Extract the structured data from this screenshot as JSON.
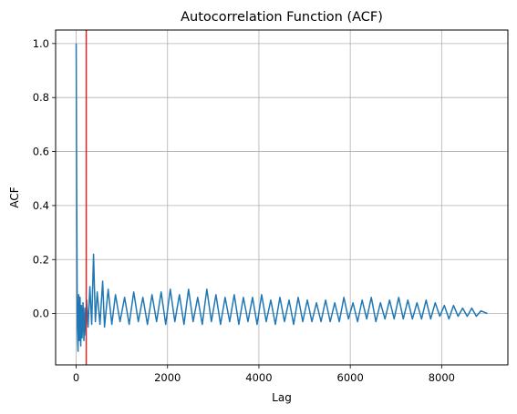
{
  "chart_data": {
    "type": "line",
    "title": "Autocorrelation Function (ACF)",
    "xlabel": "Lag",
    "ylabel": "ACF",
    "xlim": [
      -450,
      9450
    ],
    "ylim": [
      -0.19,
      1.05
    ],
    "xticks": [
      0,
      2000,
      4000,
      6000,
      8000
    ],
    "xtick_labels": [
      "0",
      "2000",
      "4000",
      "6000",
      "8000"
    ],
    "yticks": [
      0.0,
      0.2,
      0.4,
      0.6,
      0.8,
      1.0
    ],
    "ytick_labels": [
      "0.0",
      "0.2",
      "0.4",
      "0.6",
      "0.8",
      "1.0"
    ],
    "grid": true,
    "line_color": "#1f77b4",
    "marker_color": "#d62728",
    "vertical_marker_x": 220,
    "series": [
      {
        "x": [
          0,
          10,
          25,
          40,
          55,
          70,
          85,
          100,
          115,
          130,
          150,
          170,
          190,
          210,
          230,
          260,
          300,
          340,
          380,
          420,
          460,
          520,
          580,
          620,
          700,
          780,
          860,
          960,
          1060,
          1160,
          1260,
          1360,
          1460,
          1560,
          1660,
          1760,
          1860,
          1960,
          2060,
          2160,
          2260,
          2360,
          2460,
          2560,
          2660,
          2760,
          2860,
          2960,
          3060,
          3160,
          3260,
          3360,
          3460,
          3560,
          3660,
          3760,
          3860,
          3960,
          4060,
          4160,
          4260,
          4360,
          4460,
          4560,
          4660,
          4760,
          4860,
          4960,
          5060,
          5160,
          5260,
          5360,
          5460,
          5560,
          5660,
          5760,
          5860,
          5960,
          6060,
          6160,
          6260,
          6360,
          6460,
          6560,
          6660,
          6760,
          6860,
          6960,
          7060,
          7160,
          7260,
          7360,
          7460,
          7560,
          7660,
          7760,
          7860,
          7960,
          8060,
          8160,
          8260,
          8360,
          8460,
          8560,
          8660,
          8760,
          8860,
          9000
        ],
        "y": [
          1.0,
          0.5,
          -0.05,
          -0.14,
          0.07,
          -0.1,
          0.06,
          -0.12,
          0.03,
          -0.09,
          0.04,
          -0.1,
          0.02,
          -0.08,
          0.05,
          -0.05,
          0.1,
          -0.04,
          0.22,
          -0.03,
          0.08,
          -0.04,
          0.12,
          -0.05,
          0.09,
          -0.04,
          0.07,
          -0.03,
          0.06,
          -0.04,
          0.08,
          -0.03,
          0.06,
          -0.04,
          0.07,
          -0.03,
          0.08,
          -0.04,
          0.09,
          -0.03,
          0.07,
          -0.04,
          0.09,
          -0.03,
          0.06,
          -0.04,
          0.09,
          -0.03,
          0.07,
          -0.04,
          0.06,
          -0.03,
          0.07,
          -0.04,
          0.06,
          -0.03,
          0.06,
          -0.04,
          0.07,
          -0.03,
          0.05,
          -0.04,
          0.06,
          -0.03,
          0.05,
          -0.04,
          0.06,
          -0.03,
          0.05,
          -0.03,
          0.04,
          -0.03,
          0.05,
          -0.03,
          0.04,
          -0.03,
          0.06,
          -0.02,
          0.04,
          -0.03,
          0.05,
          -0.02,
          0.06,
          -0.03,
          0.04,
          -0.02,
          0.05,
          -0.02,
          0.06,
          -0.02,
          0.05,
          -0.02,
          0.04,
          -0.02,
          0.05,
          -0.02,
          0.04,
          -0.01,
          0.03,
          -0.02,
          0.03,
          -0.01,
          0.02,
          -0.01,
          0.02,
          -0.01,
          0.01,
          0.0
        ]
      }
    ]
  }
}
